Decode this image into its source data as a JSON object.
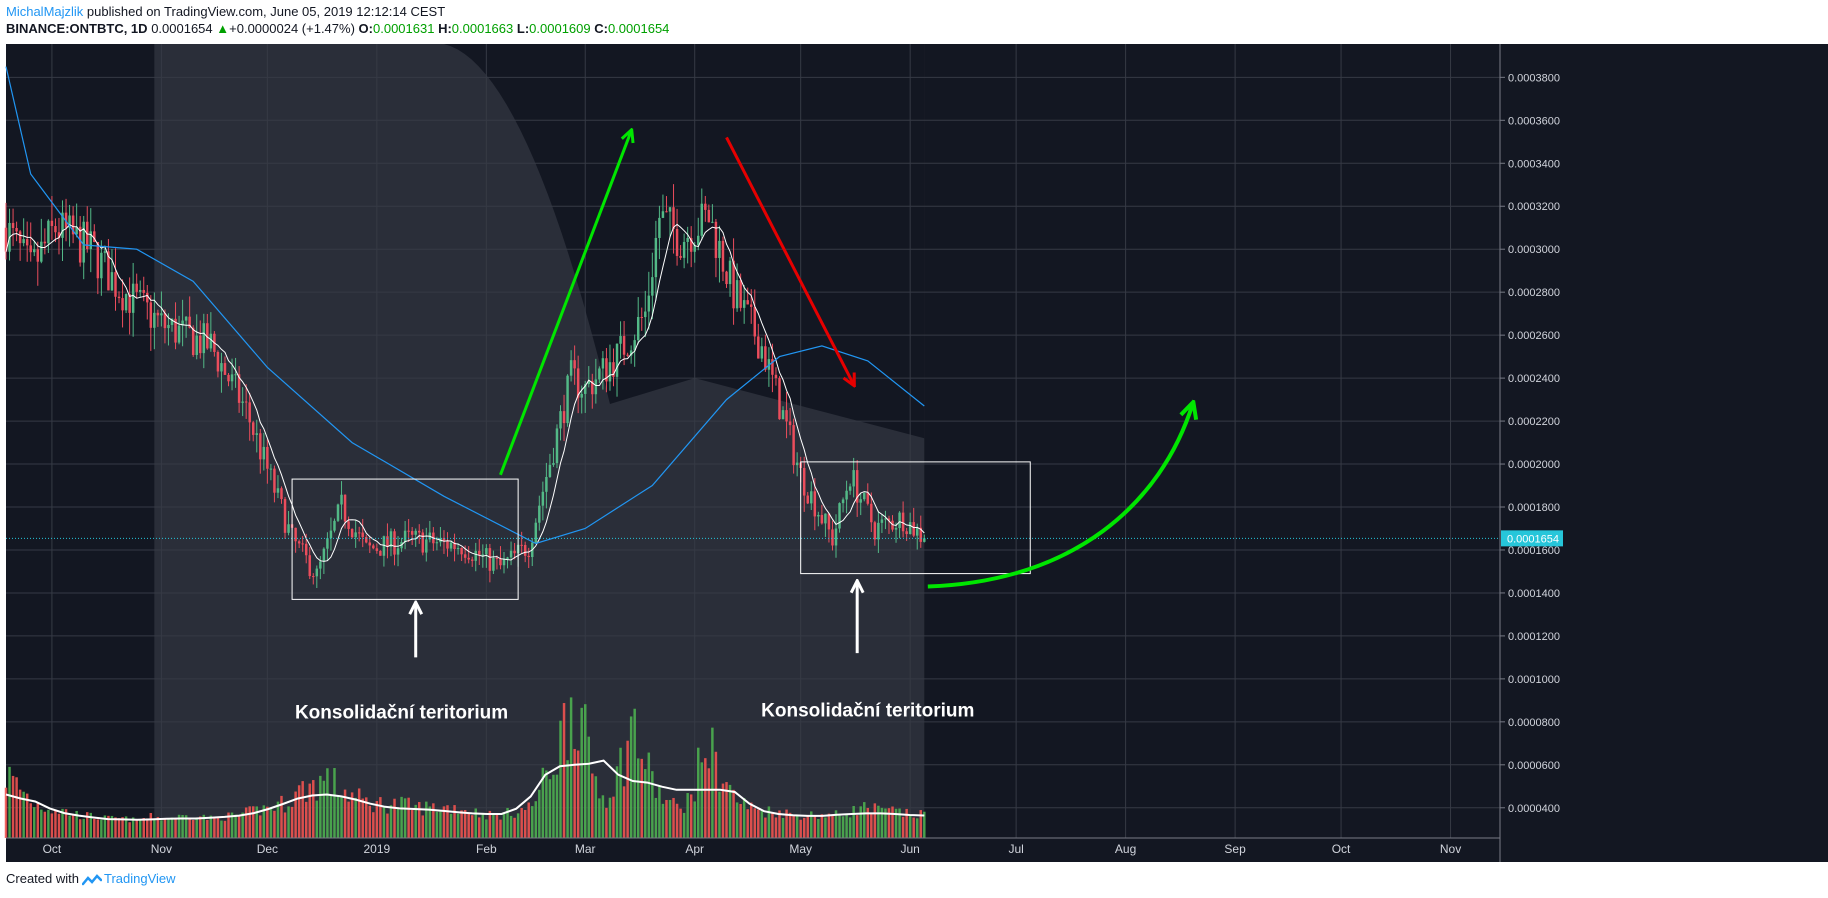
{
  "header": {
    "author": "MichalMajzlik",
    "published_text": "published on TradingView.com, June 05, 2019 12:12:14 CEST",
    "symbol": "BINANCE:ONTBTC, 1D",
    "last": "0.0001654",
    "change_arrow": "▲",
    "change": "+0.0000024 (+1.47%)",
    "open_label": "O:",
    "open": "0.0001631",
    "high_label": "H:",
    "high": "0.0001663",
    "low_label": "L:",
    "low": "0.0001609",
    "close_label": "C:",
    "close": "0.0001654"
  },
  "footer": {
    "created_with": "Created with",
    "brand": "TradingView",
    "logo_icon": "tradingview-logo-icon"
  },
  "colors": {
    "background": "#131722",
    "highlight_band": "#2a2e39",
    "grid": "#363a45",
    "candle_up": "#53b987",
    "candle_down": "#eb4d5c",
    "volume_up": "#4caf50",
    "volume_down": "#ef5350",
    "ma_short": "#ffffff",
    "ma_long": "#2196f3",
    "arrow_green": "#00e600",
    "arrow_red": "#e60000",
    "last_price_line": "#26c6da"
  },
  "chart_data": {
    "type": "candlestick",
    "title": "",
    "symbol": "BINANCE:ONTBTC",
    "interval": "1D",
    "x_tick_labels": [
      "Oct",
      "Nov",
      "Dec",
      "2019",
      "Feb",
      "Mar",
      "Apr",
      "May",
      "Jun",
      "Jul",
      "Aug",
      "Sep",
      "Oct",
      "Nov"
    ],
    "y_tick_labels": [
      "0.0000400",
      "0.0000600",
      "0.0000800",
      "0.0001000",
      "0.0001200",
      "0.0001400",
      "0.0001600",
      "0.0001800",
      "0.0002000",
      "0.0002200",
      "0.0002400",
      "0.0002600",
      "0.0002800",
      "0.0003000",
      "0.0003200",
      "0.0003400",
      "0.0003600",
      "0.0003800"
    ],
    "ylim": [
      2.5e-05,
      0.000389
    ],
    "last_price_label": "0.0001654",
    "last_price": 0.0001654,
    "price_path_keypoints": [
      {
        "date": "2018-09-18",
        "price": 0.00031
      },
      {
        "date": "2018-09-25",
        "price": 0.00029
      },
      {
        "date": "2018-10-02",
        "price": 0.00031
      },
      {
        "date": "2018-10-12",
        "price": 0.0003
      },
      {
        "date": "2018-10-20",
        "price": 0.000282
      },
      {
        "date": "2018-11-01",
        "price": 0.000265
      },
      {
        "date": "2018-11-15",
        "price": 0.000255
      },
      {
        "date": "2018-11-25",
        "price": 0.000225
      },
      {
        "date": "2018-12-08",
        "price": 0.000165
      },
      {
        "date": "2018-12-15",
        "price": 0.000148
      },
      {
        "date": "2018-12-22",
        "price": 0.00018
      },
      {
        "date": "2018-12-29",
        "price": 0.00016
      },
      {
        "date": "2019-01-10",
        "price": 0.000165
      },
      {
        "date": "2019-01-25",
        "price": 0.000162
      },
      {
        "date": "2019-02-05",
        "price": 0.000152
      },
      {
        "date": "2019-02-13",
        "price": 0.000162
      },
      {
        "date": "2019-02-25",
        "price": 0.00024
      },
      {
        "date": "2019-03-01",
        "price": 0.000235
      },
      {
        "date": "2019-03-10",
        "price": 0.00025
      },
      {
        "date": "2019-03-18",
        "price": 0.00027
      },
      {
        "date": "2019-03-22",
        "price": 0.000315
      },
      {
        "date": "2019-03-28",
        "price": 0.000305
      },
      {
        "date": "2019-04-05",
        "price": 0.000315
      },
      {
        "date": "2019-04-12",
        "price": 0.00028
      },
      {
        "date": "2019-04-20",
        "price": 0.000255
      },
      {
        "date": "2019-05-01",
        "price": 0.000195
      },
      {
        "date": "2019-05-10",
        "price": 0.000165
      },
      {
        "date": "2019-05-15",
        "price": 0.000195
      },
      {
        "date": "2019-05-22",
        "price": 0.00017
      },
      {
        "date": "2019-05-30",
        "price": 0.000175
      },
      {
        "date": "2019-06-05",
        "price": 0.0001654
      }
    ],
    "ma_long_keypoints": [
      {
        "date": "2018-09-18",
        "price": 0.000385
      },
      {
        "date": "2018-09-25",
        "price": 0.000335
      },
      {
        "date": "2018-10-10",
        "price": 0.000302
      },
      {
        "date": "2018-10-25",
        "price": 0.0003
      },
      {
        "date": "2018-11-10",
        "price": 0.000285
      },
      {
        "date": "2018-12-01",
        "price": 0.000245
      },
      {
        "date": "2018-12-25",
        "price": 0.00021
      },
      {
        "date": "2019-01-20",
        "price": 0.000185
      },
      {
        "date": "2019-02-15",
        "price": 0.000163
      },
      {
        "date": "2019-03-01",
        "price": 0.00017
      },
      {
        "date": "2019-03-20",
        "price": 0.00019
      },
      {
        "date": "2019-04-10",
        "price": 0.00023
      },
      {
        "date": "2019-04-25",
        "price": 0.00025
      },
      {
        "date": "2019-05-07",
        "price": 0.000255
      },
      {
        "date": "2019-05-20",
        "price": 0.000248
      },
      {
        "date": "2019-06-05",
        "price": 0.000227
      }
    ],
    "volume_relative": [
      0.28,
      0.2,
      0.12,
      0.1,
      0.08,
      0.06,
      0.05,
      0.04,
      0.04,
      0.03,
      0.05,
      0.04,
      0.05,
      0.06,
      0.04,
      0.05,
      0.06,
      0.08,
      0.1,
      0.12,
      0.18,
      0.22,
      0.25,
      0.2,
      0.15,
      0.12,
      0.12,
      0.12,
      0.1,
      0.1,
      0.1,
      0.1,
      0.08,
      0.06,
      0.06,
      0.08,
      0.1,
      0.25,
      0.45,
      0.75,
      0.35,
      0.15,
      0.28,
      0.55,
      0.3,
      0.15,
      0.1,
      0.15,
      0.45,
      0.3,
      0.15,
      0.1,
      0.08,
      0.08,
      0.06,
      0.06,
      0.06,
      0.06,
      0.08,
      0.1,
      0.08,
      0.08,
      0.06,
      0.06
    ],
    "volume_ylim": [
      0,
      1
    ],
    "annotations": [
      {
        "type": "rectangle",
        "start": {
          "date": "2018-12-08",
          "price": 0.000193
        },
        "end": {
          "date": "2019-02-10",
          "price": 0.000137
        }
      },
      {
        "type": "rectangle",
        "start": {
          "date": "2019-05-01",
          "price": 0.000201
        },
        "end": {
          "date": "2019-07-05",
          "price": 0.000149
        }
      },
      {
        "type": "text",
        "text": "Konsolidační teritorium",
        "date": "2019-01-08",
        "price": 8.15e-05
      },
      {
        "type": "text",
        "text": "Konsolidační teritorium",
        "date": "2019-05-20",
        "price": 8.25e-05
      },
      {
        "type": "arrow",
        "color": "white",
        "start": {
          "date": "2019-01-12",
          "price": 0.00011
        },
        "end": {
          "date": "2019-01-12",
          "price": 0.000135
        }
      },
      {
        "type": "arrow",
        "color": "white",
        "start": {
          "date": "2019-05-17",
          "price": 0.000112
        },
        "end": {
          "date": "2019-05-17",
          "price": 0.000145
        }
      },
      {
        "type": "arrow",
        "color": "green",
        "start": {
          "date": "2019-02-05",
          "price": 0.000195
        },
        "end": {
          "date": "2019-03-14",
          "price": 0.000355
        }
      },
      {
        "type": "arrow",
        "color": "red",
        "start": {
          "date": "2019-04-10",
          "price": 0.000352
        },
        "end": {
          "date": "2019-05-16",
          "price": 0.000237
        }
      },
      {
        "type": "curved-arrow",
        "color": "green",
        "start": {
          "date": "2019-06-06",
          "price": 0.000143
        },
        "end": {
          "date": "2019-08-20",
          "price": 0.000228
        }
      }
    ]
  }
}
